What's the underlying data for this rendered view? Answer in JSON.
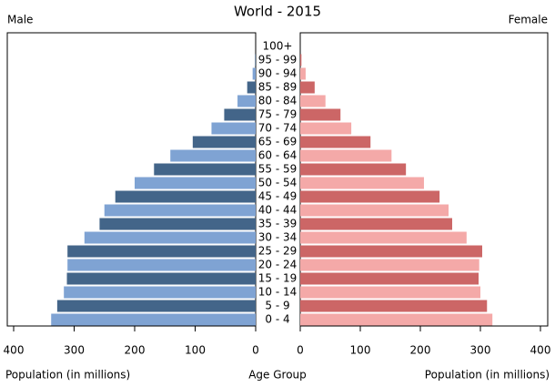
{
  "chart_data": {
    "type": "pyramid",
    "title": "World - 2015",
    "categories": [
      "100+",
      "95 - 99",
      "90 - 94",
      "85 - 89",
      "80 - 84",
      "75 - 79",
      "70 - 74",
      "65 - 69",
      "60 - 64",
      "55 - 59",
      "50 - 54",
      "45 - 49",
      "40 - 44",
      "35 - 39",
      "30 - 34",
      "25 - 29",
      "20 - 24",
      "15 - 19",
      "10 - 14",
      "5 - 9",
      "0 - 4"
    ],
    "series": [
      {
        "name": "Male",
        "colors": [
          "#7fa3d3",
          "#436589"
        ],
        "values": [
          0,
          1,
          5,
          14,
          30,
          52,
          73,
          104,
          141,
          168,
          200,
          232,
          250,
          258,
          283,
          311,
          311,
          312,
          317,
          328,
          338
        ]
      },
      {
        "name": "Female",
        "colors": [
          "#f4a9a8",
          "#cc6666"
        ],
        "values": [
          0,
          2,
          9,
          24,
          42,
          67,
          85,
          117,
          152,
          176,
          206,
          232,
          247,
          253,
          277,
          303,
          298,
          297,
          300,
          311,
          320
        ]
      }
    ],
    "xlim": [
      0,
      400
    ],
    "xticks": [
      0,
      100,
      200,
      300,
      400
    ],
    "xlabel": "Population (in millions)",
    "ylabel": "Age Group"
  }
}
